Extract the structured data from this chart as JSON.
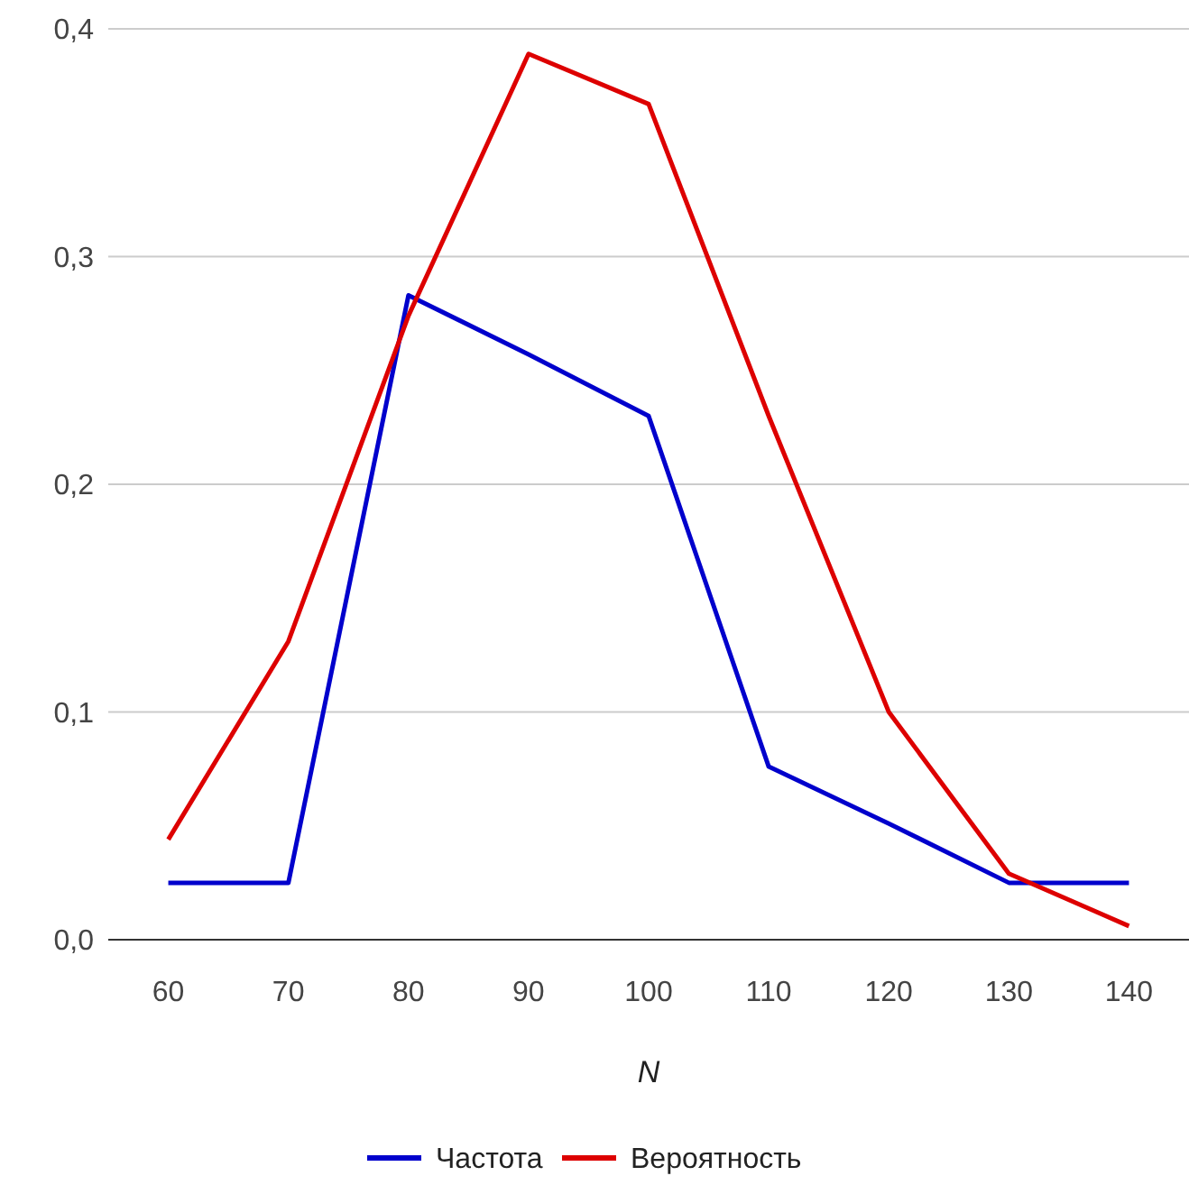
{
  "chart_data": {
    "type": "line",
    "xlabel": "N",
    "categories": [
      "60",
      "70",
      "80",
      "90",
      "100",
      "110",
      "120",
      "130",
      "140"
    ],
    "series": [
      {
        "name": "Частота",
        "color": "#0000cc",
        "values": [
          0.025,
          0.025,
          0.283,
          0.257,
          0.23,
          0.076,
          0.051,
          0.025,
          0.025
        ]
      },
      {
        "name": "Вероятность",
        "color": "#dd0000",
        "values": [
          0.044,
          0.131,
          0.274,
          0.389,
          0.367,
          0.23,
          0.1,
          0.029,
          0.006
        ]
      }
    ],
    "ylim": [
      0,
      0.4
    ],
    "yticks": [
      {
        "value": 0,
        "label": "0,0"
      },
      {
        "value": 0.1,
        "label": "0,1"
      },
      {
        "value": 0.2,
        "label": "0,2"
      },
      {
        "value": 0.3,
        "label": "0,3"
      },
      {
        "value": 0.4,
        "label": "0,4"
      }
    ],
    "grid": "y",
    "legend": "bottom",
    "marker": "none",
    "line_style": "solid"
  }
}
